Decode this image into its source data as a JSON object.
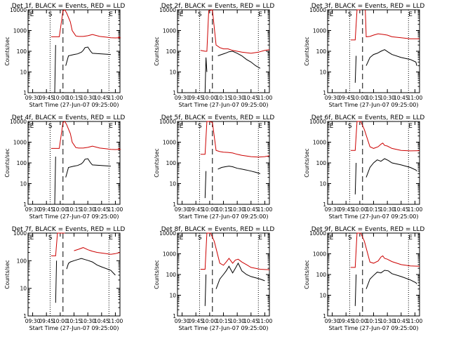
{
  "chart_data": [
    {
      "type": "line",
      "title": "Det 1f, BLACK = Events, RED = LLD",
      "xlabel": "Start Time (27-Jun-07 09:25:00)",
      "ylabel": "Counts/sec",
      "yscale": "log",
      "ylim": [
        1,
        10000
      ],
      "yticks": [
        "1",
        "10",
        "100",
        "1000",
        "10000"
      ],
      "xticks": [
        "09:30",
        "09:45",
        "10:00",
        "10:15",
        "10:30",
        "10:45",
        "11:00"
      ],
      "markers": [
        "E",
        "S",
        "E"
      ],
      "series": [
        {
          "color": "#cc0000",
          "x": [
            25,
            34,
            38,
            40,
            42,
            46,
            48,
            52,
            55,
            60,
            65,
            70,
            78,
            85,
            90,
            95,
            100,
            98
          ],
          "y": [
            500,
            500,
            9000,
            10000,
            7000,
            2600,
            1000,
            550,
            520,
            520,
            560,
            640,
            520,
            480,
            450,
            440,
            450,
            500
          ]
        },
        {
          "color": "#000000",
          "x": [
            26,
            29,
            30,
            32,
            40,
            41,
            44,
            50,
            54,
            58,
            60,
            62,
            65,
            68,
            70,
            80,
            90,
            91
          ],
          "y": [
            null,
            1,
            200,
            null,
            null,
            20,
            60,
            70,
            75,
            90,
            110,
            150,
            160,
            100,
            80,
            75,
            70,
            null
          ]
        }
      ]
    },
    {
      "type": "line",
      "title": "Det 2f, BLACK = Events, RED = LLD",
      "xlabel": "Start Time (27-Jun-07 09:25:00)",
      "ylabel": "Counts/sec",
      "yscale": "log",
      "ylim": [
        1,
        10000
      ],
      "yticks": [
        "1",
        "10",
        "100",
        "1000",
        "10000"
      ],
      "xticks": [
        "09:30",
        "09:45",
        "10:00",
        "10:15",
        "10:30",
        "10:45",
        "11:00"
      ],
      "markers": [
        "E",
        "S",
        "E"
      ],
      "series": [
        {
          "color": "#cc0000",
          "x": [
            25,
            30,
            32,
            34,
            38,
            42,
            46,
            50,
            55,
            60,
            65,
            70,
            80,
            88,
            95,
            100
          ],
          "y": [
            110,
            100,
            100,
            9000,
            10000,
            200,
            150,
            130,
            130,
            110,
            100,
            90,
            80,
            90,
            110,
            120
          ]
        },
        {
          "color": "#000000",
          "x": [
            30,
            31,
            32,
            34,
            40,
            44,
            48,
            52,
            56,
            60,
            65,
            70,
            75,
            80,
            85,
            90
          ],
          "y": [
            1,
            50,
            10,
            null,
            null,
            60,
            70,
            80,
            95,
            100,
            80,
            60,
            40,
            30,
            20,
            15
          ]
        }
      ]
    },
    {
      "type": "line",
      "title": "Det 3f, BLACK = Events, RED = LLD",
      "xlabel": "Start Time (27-Jun-07 09:25:00)",
      "ylabel": "Counts/sec",
      "yscale": "log",
      "ylim": [
        1,
        10000
      ],
      "yticks": [
        "1",
        "10",
        "100",
        "1000",
        "10000"
      ],
      "xticks": [
        "09:30",
        "09:45",
        "10:00",
        "10:15",
        "10:30",
        "10:45",
        "11:00"
      ],
      "markers": [
        "E",
        "S",
        "E"
      ],
      "series": [
        {
          "color": "#cc0000",
          "x": [
            25,
            30,
            32,
            36,
            40,
            41,
            42,
            46,
            50,
            55,
            60,
            65,
            70,
            80,
            90,
            100
          ],
          "y": [
            350,
            350,
            10000,
            10000,
            null,
            10000,
            500,
            520,
            600,
            700,
            650,
            600,
            500,
            450,
            400,
            400
          ]
        },
        {
          "color": "#000000",
          "x": [
            30,
            31,
            32,
            34,
            42,
            46,
            50,
            54,
            58,
            62,
            66,
            70,
            80,
            90,
            96,
            97
          ],
          "y": [
            3,
            60,
            null,
            null,
            20,
            50,
            70,
            80,
            100,
            120,
            90,
            70,
            50,
            40,
            30,
            20
          ]
        }
      ]
    },
    {
      "type": "line",
      "title": "Det 4f, BLACK = Events, RED = LLD",
      "xlabel": "Start Time (27-Jun-07 09:25:00)",
      "ylabel": "Counts/sec",
      "yscale": "log",
      "ylim": [
        1,
        10000
      ],
      "yticks": [
        "1",
        "10",
        "100",
        "1000",
        "10000"
      ],
      "xticks": [
        "09:30",
        "09:45",
        "10:00",
        "10:15",
        "10:30",
        "10:45",
        "11:00"
      ],
      "markers": [
        "E",
        "S",
        "E"
      ],
      "series": [
        {
          "color": "#cc0000",
          "x": [
            25,
            34,
            38,
            40,
            42,
            46,
            48,
            52,
            55,
            60,
            65,
            70,
            78,
            85,
            90,
            95,
            100,
            98
          ],
          "y": [
            500,
            500,
            9000,
            10000,
            7000,
            2600,
            1000,
            550,
            520,
            520,
            560,
            640,
            520,
            480,
            450,
            440,
            450,
            500
          ]
        },
        {
          "color": "#000000",
          "x": [
            26,
            29,
            30,
            32,
            40,
            41,
            44,
            50,
            54,
            58,
            60,
            62,
            65,
            68,
            70,
            80,
            90,
            91
          ],
          "y": [
            null,
            1,
            200,
            null,
            null,
            20,
            60,
            70,
            75,
            90,
            110,
            150,
            160,
            100,
            80,
            75,
            70,
            null
          ]
        }
      ]
    },
    {
      "type": "line",
      "title": "Det 5f, BLACK = Events, RED = LLD",
      "xlabel": "Start Time (27-Jun-07 09:25:00)",
      "ylabel": "Counts/sec",
      "yscale": "log",
      "ylim": [
        1,
        10000
      ],
      "yticks": [
        "1",
        "10",
        "100",
        "1000",
        "10000"
      ],
      "xticks": [
        "09:30",
        "09:45",
        "10:00",
        "10:15",
        "10:30",
        "10:45",
        "11:00"
      ],
      "markers": [
        "E",
        "S",
        "E"
      ],
      "series": [
        {
          "color": "#cc0000",
          "x": [
            25,
            30,
            32,
            34,
            38,
            42,
            46,
            50,
            55,
            60,
            65,
            70,
            80,
            88,
            95,
            100
          ],
          "y": [
            260,
            260,
            10000,
            10000,
            9000,
            400,
            350,
            330,
            320,
            300,
            260,
            230,
            200,
            190,
            200,
            220
          ]
        },
        {
          "color": "#000000",
          "x": [
            30,
            31,
            32,
            34,
            40,
            44,
            48,
            52,
            56,
            60,
            65,
            70,
            75,
            80,
            85,
            90
          ],
          "y": [
            2,
            40,
            null,
            null,
            null,
            50,
            60,
            65,
            70,
            65,
            55,
            50,
            45,
            40,
            35,
            30
          ]
        }
      ]
    },
    {
      "type": "line",
      "title": "Det 6f, BLACK = Events, RED = LLD",
      "xlabel": "Start Time (27-Jun-07 09:25:00)",
      "ylabel": "Counts/sec",
      "yscale": "log",
      "ylim": [
        1,
        10000
      ],
      "yticks": [
        "1",
        "10",
        "100",
        "1000",
        "10000"
      ],
      "xticks": [
        "09:30",
        "09:45",
        "10:00",
        "10:15",
        "10:30",
        "10:45",
        "11:00"
      ],
      "markers": [
        "E",
        "S",
        "E"
      ],
      "series": [
        {
          "color": "#cc0000",
          "x": [
            25,
            30,
            32,
            36,
            40,
            46,
            50,
            55,
            58,
            60,
            62,
            65,
            70,
            80,
            90,
            100
          ],
          "y": [
            400,
            400,
            10000,
            10000,
            4000,
            600,
            500,
            600,
            800,
            900,
            700,
            650,
            500,
            400,
            380,
            390
          ]
        },
        {
          "color": "#000000",
          "x": [
            30,
            31,
            32,
            34,
            42,
            46,
            50,
            54,
            58,
            62,
            66,
            70,
            80,
            90,
            96,
            97
          ],
          "y": [
            3,
            100,
            null,
            null,
            20,
            60,
            100,
            140,
            120,
            160,
            130,
            100,
            80,
            60,
            45,
            40
          ]
        }
      ]
    },
    {
      "type": "line",
      "title": "Det 7f, BLACK = Events, RED = LLD",
      "xlabel": "Start Time (27-Jun-07 09:25:00)",
      "ylabel": "Counts/sec",
      "yscale": "log",
      "ylim": [
        1,
        1000
      ],
      "yticks": [
        "1",
        "10",
        "100",
        "1000"
      ],
      "xticks": [
        "09:30",
        "09:45",
        "10:00",
        "10:15",
        "10:30",
        "10:45",
        "11:00"
      ],
      "markers": [
        "E",
        "S",
        "E"
      ],
      "series": [
        {
          "color": "#cc0000",
          "x": [
            25,
            30,
            32,
            34,
            40,
            42,
            46,
            50,
            55,
            60,
            65,
            70,
            75,
            80,
            85,
            90,
            95,
            100
          ],
          "y": [
            150,
            150,
            1000,
            1000,
            1000,
            null,
            null,
            230,
            260,
            300,
            250,
            220,
            200,
            190,
            180,
            170,
            180,
            200
          ]
        },
        {
          "color": "#000000",
          "x": [
            30,
            31,
            32,
            34,
            42,
            44,
            46,
            50,
            54,
            58,
            62,
            66,
            70,
            75,
            80,
            90,
            95
          ],
          "y": [
            3,
            100,
            null,
            null,
            50,
            80,
            90,
            100,
            110,
            120,
            110,
            100,
            90,
            70,
            60,
            45,
            30
          ]
        }
      ]
    },
    {
      "type": "line",
      "title": "Det 8f, BLACK = Events, RED = LLD",
      "xlabel": "Start Time (27-Jun-07 09:25:00)",
      "ylabel": "Counts/sec",
      "yscale": "log",
      "ylim": [
        1,
        10000
      ],
      "yticks": [
        "1",
        "10",
        "100",
        "1000",
        "10000"
      ],
      "xticks": [
        "09:30",
        "09:45",
        "10:00",
        "10:15",
        "10:30",
        "10:45",
        "11:00"
      ],
      "markers": [
        "E",
        "S",
        "E"
      ],
      "series": [
        {
          "color": "#cc0000",
          "x": [
            25,
            30,
            32,
            36,
            40,
            46,
            50,
            53,
            56,
            60,
            63,
            66,
            70,
            75,
            80,
            90,
            100
          ],
          "y": [
            180,
            180,
            10000,
            10000,
            4000,
            350,
            280,
            400,
            600,
            350,
            500,
            550,
            400,
            300,
            220,
            180,
            170
          ]
        },
        {
          "color": "#000000",
          "x": [
            30,
            31,
            32,
            34,
            42,
            46,
            50,
            53,
            56,
            60,
            63,
            66,
            70,
            75,
            80,
            90,
            95
          ],
          "y": [
            3,
            100,
            null,
            null,
            20,
            60,
            100,
            150,
            250,
            120,
            200,
            350,
            150,
            100,
            80,
            60,
            50
          ]
        }
      ]
    },
    {
      "type": "line",
      "title": "Det 9f, BLACK = Events, RED = LLD",
      "xlabel": "Start Time (27-Jun-07 09:25:00)",
      "ylabel": "Counts/sec",
      "yscale": "log",
      "ylim": [
        1,
        10000
      ],
      "yticks": [
        "1",
        "10",
        "100",
        "1000",
        "10000"
      ],
      "xticks": [
        "09:30",
        "09:45",
        "10:00",
        "10:15",
        "10:30",
        "10:45",
        "11:00"
      ],
      "markers": [
        "E",
        "S",
        "E"
      ],
      "series": [
        {
          "color": "#cc0000",
          "x": [
            25,
            30,
            32,
            36,
            40,
            46,
            50,
            55,
            58,
            60,
            62,
            65,
            70,
            80,
            90,
            100
          ],
          "y": [
            220,
            220,
            10000,
            10000,
            4000,
            400,
            350,
            450,
            700,
            800,
            600,
            550,
            420,
            300,
            260,
            250
          ]
        },
        {
          "color": "#000000",
          "x": [
            30,
            31,
            32,
            34,
            42,
            46,
            50,
            54,
            58,
            62,
            66,
            70,
            80,
            90,
            96,
            97
          ],
          "y": [
            3,
            100,
            null,
            null,
            20,
            60,
            90,
            130,
            120,
            160,
            150,
            110,
            80,
            55,
            40,
            35
          ]
        }
      ]
    }
  ]
}
